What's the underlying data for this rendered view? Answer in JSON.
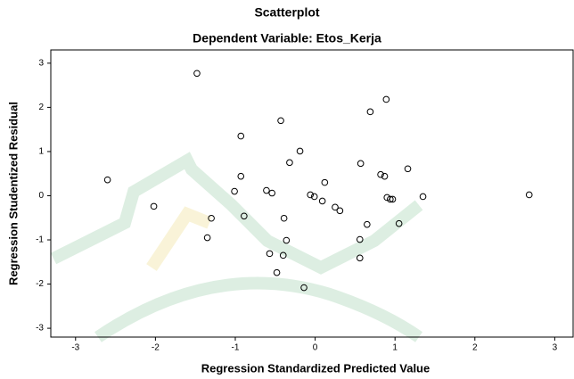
{
  "chart_data": {
    "type": "scatter",
    "title": "Scatterplot",
    "subtitle": "Dependent Variable: Etos_Kerja",
    "x_label": "Regression Standardized Predicted Value",
    "y_label": "Regression Studentized Residual",
    "xlim": [
      -3.31,
      3.23
    ],
    "ylim": [
      -3.2,
      3.3
    ],
    "xticks": [
      -3,
      -2,
      -1,
      0,
      1,
      2,
      3
    ],
    "yticks": [
      -3,
      -2,
      -1,
      0,
      1,
      2,
      3
    ],
    "grid": false,
    "color": "#000000",
    "x": [
      -1.48,
      0.89,
      0.69,
      -0.43,
      -0.93,
      -0.19,
      -0.32,
      0.57,
      1.16,
      0.82,
      0.87,
      -0.93,
      0.12,
      -2.6,
      -1.01,
      -0.61,
      -0.54,
      -0.06,
      -0.01,
      0.09,
      0.25,
      0.31,
      0.9,
      0.94,
      0.97,
      1.35,
      2.68,
      -2.02,
      -1.3,
      -0.89,
      -0.39,
      0.65,
      1.05,
      -1.35,
      -0.36,
      0.56,
      -0.57,
      -0.4,
      0.56,
      -0.48,
      -0.14
    ],
    "values": [
      2.77,
      2.18,
      1.9,
      1.7,
      1.35,
      1.01,
      0.75,
      0.73,
      0.61,
      0.48,
      0.44,
      0.44,
      0.3,
      0.36,
      0.1,
      0.12,
      0.06,
      0.02,
      -0.02,
      -0.12,
      -0.26,
      -0.34,
      -0.04,
      -0.08,
      -0.08,
      -0.02,
      0.02,
      -0.24,
      -0.51,
      -0.46,
      -0.51,
      -0.65,
      -0.63,
      -0.95,
      -1.01,
      -0.99,
      -1.31,
      -1.35,
      -1.41,
      -1.74,
      -2.08
    ]
  }
}
